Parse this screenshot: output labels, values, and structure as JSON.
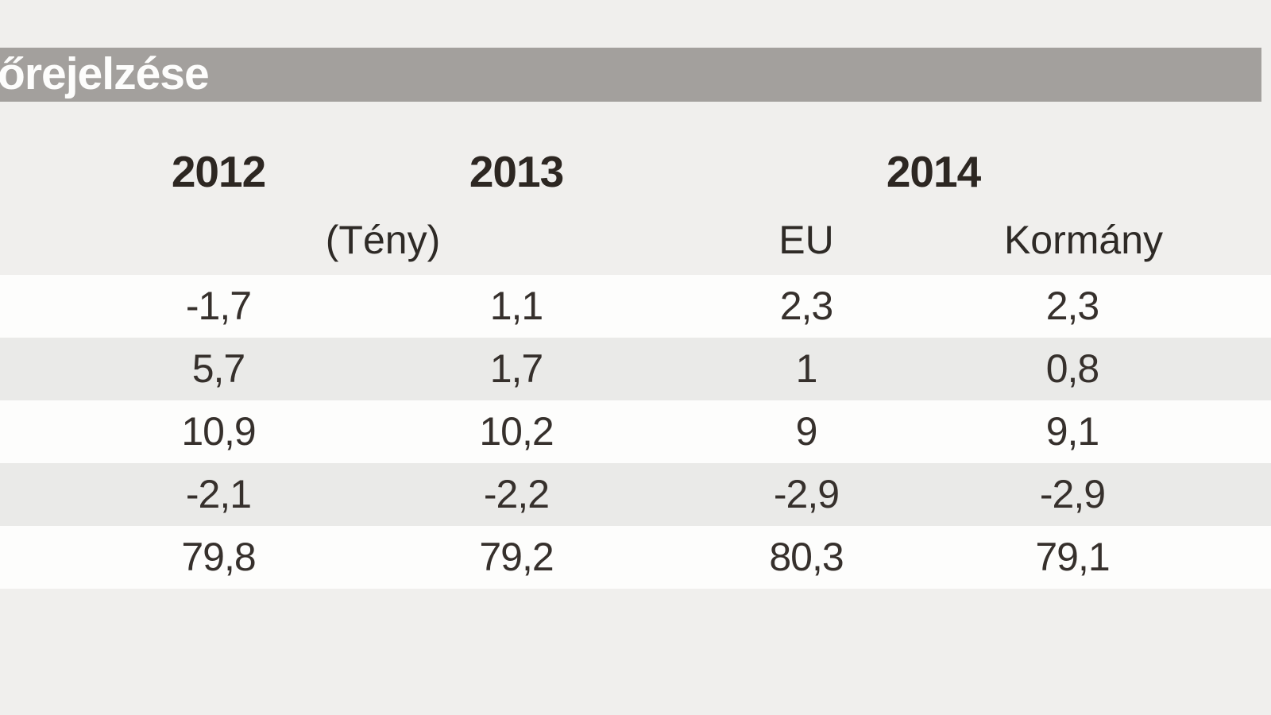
{
  "title": {
    "text": "őrejelzése"
  },
  "table": {
    "year_headers": [
      "2012",
      "2013",
      "2014"
    ],
    "sub_headers": {
      "fact": "(Tény)",
      "eu": "EU",
      "government": "Kormány"
    },
    "rows": [
      {
        "values": [
          "-1,7",
          "1,1",
          "2,3",
          "2,3"
        ]
      },
      {
        "values": [
          "5,7",
          "1,7",
          "1",
          "0,8"
        ]
      },
      {
        "values": [
          "10,9",
          "10,2",
          "9",
          "9,1"
        ]
      },
      {
        "values": [
          "-2,1",
          "-2,2",
          "-2,9",
          "-2,9"
        ]
      },
      {
        "values": [
          "79,8",
          "79,2",
          "80,3",
          "79,1"
        ]
      }
    ]
  },
  "colors": {
    "page_background": "#f0efed",
    "title_bar": "#a3a09d",
    "title_text": "#fdfdfc",
    "header_text": "#2d2722",
    "data_text": "#36302c",
    "row_white": "#fdfdfc",
    "row_gray": "#eaeae8"
  },
  "chart_data": {
    "type": "table",
    "title": "őrejelzése",
    "columns": [
      "2012",
      "2013 (Tény)",
      "2014 EU",
      "2014 Kormány"
    ],
    "rows": [
      [
        -1.7,
        1.1,
        2.3,
        2.3
      ],
      [
        5.7,
        1.7,
        1,
        0.8
      ],
      [
        10.9,
        10.2,
        9,
        9.1
      ],
      [
        -2.1,
        -2.2,
        -2.9,
        -2.9
      ],
      [
        79.8,
        79.2,
        80.3,
        79.1
      ]
    ],
    "layout_hints": {
      "decimal_separator": "comma",
      "row_striping": "white/gray alternating",
      "alignment": "center"
    }
  }
}
